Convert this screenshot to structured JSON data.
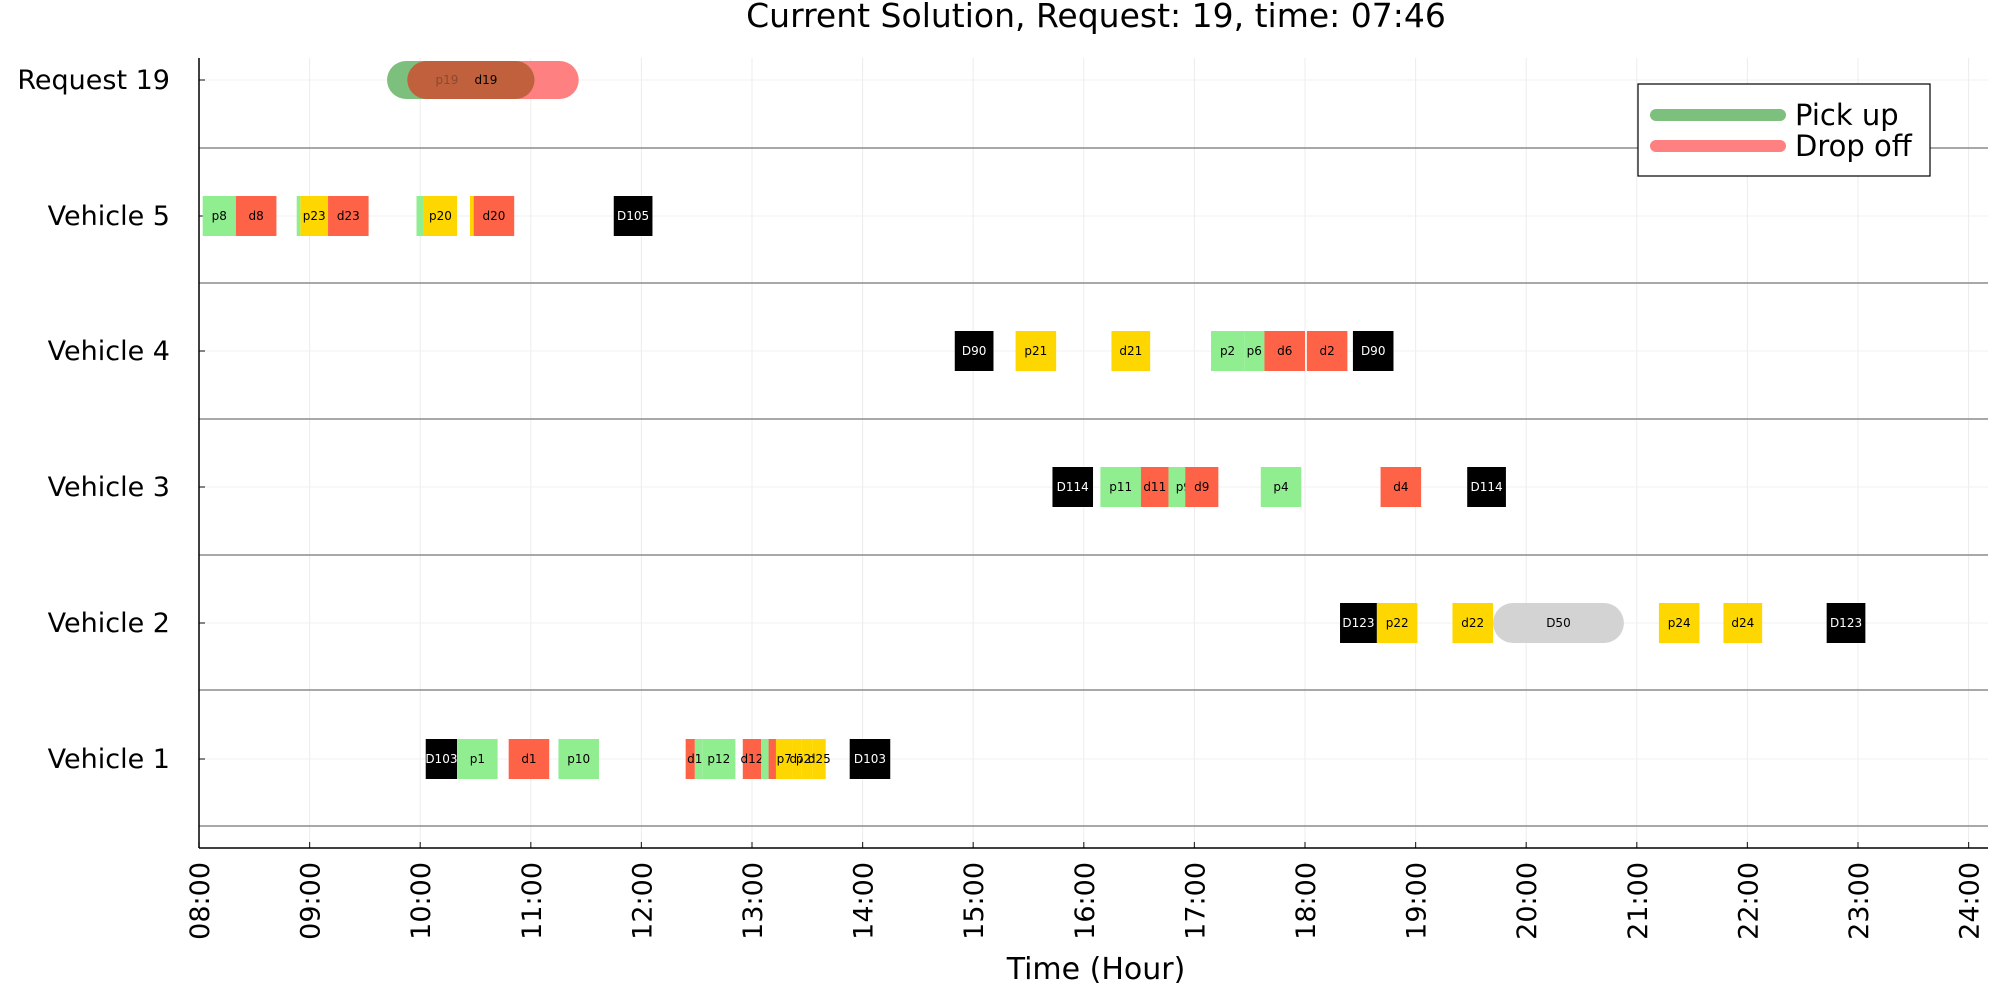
{
  "chart_data": {
    "type": "timeline",
    "title": "Current Solution, Request: 19, time: 07:46",
    "xlabel": "Time (Hour)",
    "xlim": [
      "08:00",
      "24:00"
    ],
    "xticks": [
      "08:00",
      "09:00",
      "10:00",
      "11:00",
      "12:00",
      "13:00",
      "14:00",
      "15:00",
      "16:00",
      "17:00",
      "18:00",
      "19:00",
      "20:00",
      "21:00",
      "22:00",
      "23:00",
      "24:00"
    ],
    "rows": [
      "Request 19",
      "Vehicle 5",
      "Vehicle 4",
      "Vehicle 3",
      "Vehicle 2",
      "Vehicle 1"
    ],
    "grid": true,
    "legend": {
      "position": "top-right",
      "entries": [
        {
          "label": "Pick up",
          "color": "#7dbf7d"
        },
        {
          "label": "Drop off",
          "color": "#ff8080"
        }
      ]
    },
    "colors": {
      "pickup": "#90ee90",
      "dropoff": "#ff6347",
      "depot": "#000000",
      "pending": "#ffd700",
      "travel": "#d3d3d3",
      "request_pickup_window": "#7dbf7d",
      "request_dropoff_window": "#ff8080",
      "request_overlap": "#c0603c"
    },
    "request_windows": [
      {
        "row": "Request 19",
        "kind": "pickup",
        "start": "09:42",
        "end": "11:02",
        "label": "p19"
      },
      {
        "row": "Request 19",
        "kind": "dropoff",
        "start": "09:53",
        "end": "11:26",
        "label": "d19"
      }
    ],
    "blocks": [
      {
        "row": "Vehicle 5",
        "label": "p8",
        "type": "pickup",
        "start": "08:02",
        "end": "08:20"
      },
      {
        "row": "Vehicle 5",
        "label": "d8",
        "type": "dropoff",
        "start": "08:20",
        "end": "08:42"
      },
      {
        "row": "Vehicle 5",
        "label": "",
        "type": "pickup",
        "start": "08:53",
        "end": "08:55"
      },
      {
        "row": "Vehicle 5",
        "label": "p23",
        "type": "pending",
        "start": "08:55",
        "end": "09:10"
      },
      {
        "row": "Vehicle 5",
        "label": "d23",
        "type": "dropoff",
        "start": "09:10",
        "end": "09:32"
      },
      {
        "row": "Vehicle 5",
        "label": "",
        "type": "pickup",
        "start": "09:58",
        "end": "10:02"
      },
      {
        "row": "Vehicle 5",
        "label": "p20",
        "type": "pending",
        "start": "10:02",
        "end": "10:20"
      },
      {
        "row": "Vehicle 5",
        "label": "",
        "type": "pending",
        "start": "10:27",
        "end": "10:29"
      },
      {
        "row": "Vehicle 5",
        "label": "d20",
        "type": "dropoff",
        "start": "10:29",
        "end": "10:51"
      },
      {
        "row": "Vehicle 5",
        "label": "D105",
        "type": "depot",
        "start": "11:45",
        "end": "12:06"
      },
      {
        "row": "Vehicle 4",
        "label": "D90",
        "type": "depot",
        "start": "14:50",
        "end": "15:11"
      },
      {
        "row": "Vehicle 4",
        "label": "p21",
        "type": "pending",
        "start": "15:23",
        "end": "15:45"
      },
      {
        "row": "Vehicle 4",
        "label": "d21",
        "type": "pending",
        "start": "16:15",
        "end": "16:36"
      },
      {
        "row": "Vehicle 4",
        "label": "p2",
        "type": "pickup",
        "start": "17:09",
        "end": "17:27"
      },
      {
        "row": "Vehicle 4",
        "label": "p6",
        "type": "pickup",
        "start": "17:27",
        "end": "17:38"
      },
      {
        "row": "Vehicle 4",
        "label": "d6",
        "type": "dropoff",
        "start": "17:38",
        "end": "18:00"
      },
      {
        "row": "Vehicle 4",
        "label": "d2",
        "type": "dropoff",
        "start": "18:01",
        "end": "18:23"
      },
      {
        "row": "Vehicle 4",
        "label": "D90",
        "type": "depot",
        "start": "18:26",
        "end": "18:48"
      },
      {
        "row": "Vehicle 3",
        "label": "D114",
        "type": "depot",
        "start": "15:43",
        "end": "16:05"
      },
      {
        "row": "Vehicle 3",
        "label": "p11",
        "type": "pickup",
        "start": "16:09",
        "end": "16:31"
      },
      {
        "row": "Vehicle 3",
        "label": "d11",
        "type": "dropoff",
        "start": "16:31",
        "end": "16:46"
      },
      {
        "row": "Vehicle 3",
        "label": "",
        "type": "pickup",
        "start": "16:46",
        "end": "16:53"
      },
      {
        "row": "Vehicle 3",
        "label": "p9",
        "type": "pickup",
        "start": "16:53",
        "end": "16:55"
      },
      {
        "row": "Vehicle 3",
        "label": "d9",
        "type": "dropoff",
        "start": "16:55",
        "end": "17:13"
      },
      {
        "row": "Vehicle 3",
        "label": "p4",
        "type": "pickup",
        "start": "17:36",
        "end": "17:58"
      },
      {
        "row": "Vehicle 3",
        "label": "d4",
        "type": "dropoff",
        "start": "18:41",
        "end": "19:03"
      },
      {
        "row": "Vehicle 3",
        "label": "D114",
        "type": "depot",
        "start": "19:28",
        "end": "19:49"
      },
      {
        "row": "Vehicle 2",
        "label": "D123",
        "type": "depot",
        "start": "18:19",
        "end": "18:39"
      },
      {
        "row": "Vehicle 2",
        "label": "p22",
        "type": "pending",
        "start": "18:39",
        "end": "19:01"
      },
      {
        "row": "Vehicle 2",
        "label": "d22",
        "type": "pending",
        "start": "19:20",
        "end": "19:42"
      },
      {
        "row": "Vehicle 2",
        "label": "D50",
        "type": "travel",
        "start": "19:42",
        "end": "20:53"
      },
      {
        "row": "Vehicle 2",
        "label": "p24",
        "type": "pending",
        "start": "21:12",
        "end": "21:34"
      },
      {
        "row": "Vehicle 2",
        "label": "d24",
        "type": "pending",
        "start": "21:47",
        "end": "22:08"
      },
      {
        "row": "Vehicle 2",
        "label": "D123",
        "type": "depot",
        "start": "22:43",
        "end": "23:04"
      },
      {
        "row": "Vehicle 1",
        "label": "D103",
        "type": "depot",
        "start": "10:03",
        "end": "10:20"
      },
      {
        "row": "Vehicle 1",
        "label": "p1",
        "type": "pickup",
        "start": "10:20",
        "end": "10:42"
      },
      {
        "row": "Vehicle 1",
        "label": "d1",
        "type": "dropoff",
        "start": "10:48",
        "end": "11:10"
      },
      {
        "row": "Vehicle 1",
        "label": "p10",
        "type": "pickup",
        "start": "11:15",
        "end": "11:37"
      },
      {
        "row": "Vehicle 1",
        "label": "",
        "type": "dropoff",
        "start": "12:24",
        "end": "12:29"
      },
      {
        "row": "Vehicle 1",
        "label": "d10",
        "type": "pickup",
        "start": "12:29",
        "end": "12:33"
      },
      {
        "row": "Vehicle 1",
        "label": "p12",
        "type": "pickup",
        "start": "12:33",
        "end": "12:51"
      },
      {
        "row": "Vehicle 1",
        "label": "d12",
        "type": "dropoff",
        "start": "12:55",
        "end": "13:05"
      },
      {
        "row": "Vehicle 1",
        "label": "",
        "type": "pickup",
        "start": "13:05",
        "end": "13:09"
      },
      {
        "row": "Vehicle 1",
        "label": "",
        "type": "dropoff",
        "start": "13:09",
        "end": "13:13"
      },
      {
        "row": "Vehicle 1",
        "label": "p7",
        "type": "pending",
        "start": "13:13",
        "end": "13:22"
      },
      {
        "row": "Vehicle 1",
        "label": "d7",
        "type": "pending",
        "start": "13:22",
        "end": "13:27"
      },
      {
        "row": "Vehicle 1",
        "label": "p25",
        "type": "pending",
        "start": "13:27",
        "end": "13:33"
      },
      {
        "row": "Vehicle 1",
        "label": "d25",
        "type": "pending",
        "start": "13:33",
        "end": "13:40"
      },
      {
        "row": "Vehicle 1",
        "label": "D103",
        "type": "depot",
        "start": "13:53",
        "end": "14:15"
      }
    ]
  }
}
